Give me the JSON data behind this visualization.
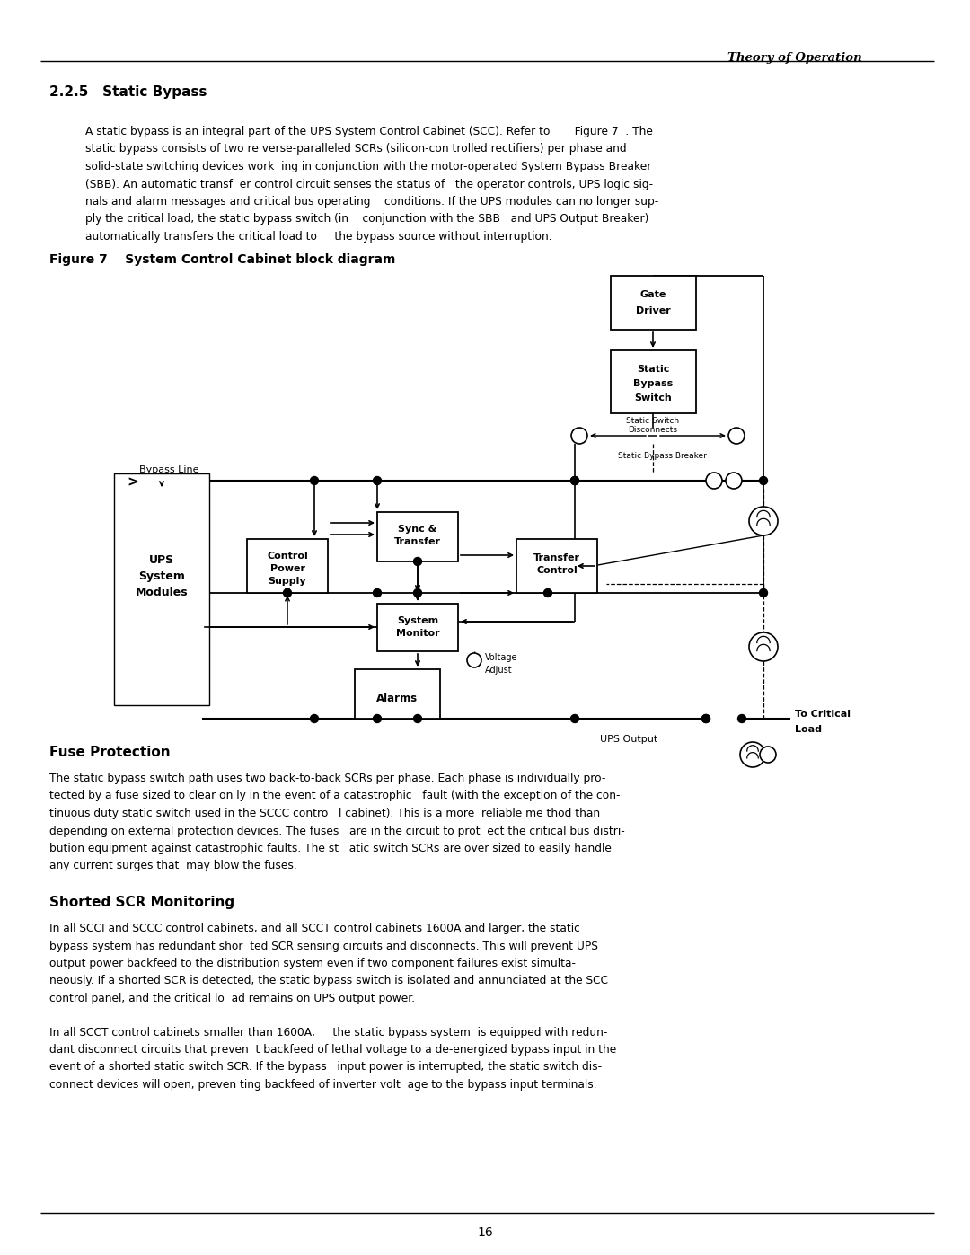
{
  "page_title": "Theory of Operation",
  "section": "2.2.5   Static Bypass",
  "fig_caption": "Figure 7    System Control Cabinet block diagram",
  "section2": "Fuse Protection",
  "section3": "Shorted SCR Monitoring",
  "page_number": "16",
  "bg_color": "#ffffff",
  "text_color": "#000000",
  "line_color": "#000000",
  "para1_lines": [
    "A static bypass is an integral part of the UPS System Control Cabinet (SCC). Refer to       Figure 7  . The",
    "static bypass consists of two re verse-paralleled SCRs (silicon-con trolled rectifiers) per phase and",
    "solid-state switching devices work  ing in conjunction with the motor-operated System Bypass Breaker",
    "(SBB). An automatic transf  er control circuit senses the status of   the operator controls, UPS logic sig-",
    "nals and alarm messages and critical bus operating    conditions. If the UPS modules can no longer sup-",
    "ply the critical load, the static bypass switch (in    conjunction with the SBB   and UPS Output Breaker)",
    "automatically transfers the critical load to     the bypass source without interruption."
  ],
  "fuse_lines": [
    "The static bypass switch path uses two back-to-back SCRs per phase. Each phase is individually pro-",
    "tected by a fuse sized to clear on ly in the event of a catastrophic   fault (with the exception of the con-",
    "tinuous duty static switch used in the SCCC contro   l cabinet). This is a more  reliable me thod than",
    "depending on external protection devices. The fuses   are in the circuit to prot  ect the critical bus distri-",
    "bution equipment against catastrophic faults. The st   atic switch SCRs are over sized to easily handle",
    "any current surges that  may blow the fuses."
  ],
  "scr_lines1": [
    "In all SCCI and SCCC control cabinets, and all SCCT control cabinets 1600A and larger, the static",
    "bypass system has redundant shor  ted SCR sensing circuits and disconnects. This will prevent UPS",
    "output power backfeed to the distribution system even if two component failures exist simulta-",
    "neously. If a shorted SCR is detected, the static bypass switch is isolated and annunciated at the SCC",
    "control panel, and the critical lo  ad remains on UPS output power."
  ],
  "scr_lines2": [
    "In all SCCT control cabinets smaller than 1600A,     the static bypass system  is equipped with redun-",
    "dant disconnect circuits that preven  t backfeed of lethal voltage to a de-energized bypass input in the",
    "event of a shorted static switch SCR. If the bypass   input power is interrupted, the static switch dis-",
    "connect devices will open, preven ting backfeed of inverter volt  age to the bypass input terminals."
  ]
}
